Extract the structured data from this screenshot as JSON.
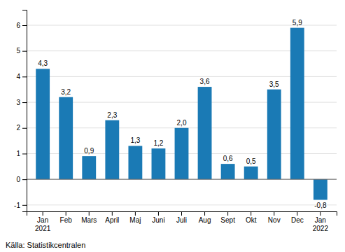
{
  "chart_data": {
    "type": "bar",
    "categories": [
      "Jan\n2021",
      "Feb",
      "Mars",
      "April",
      "Maj",
      "Juni",
      "Juli",
      "Aug",
      "Sept",
      "Okt",
      "Nov",
      "Dec",
      "Jan\n2022"
    ],
    "values": [
      4.3,
      3.2,
      0.9,
      2.3,
      1.3,
      1.2,
      2.0,
      3.6,
      0.6,
      0.5,
      3.5,
      5.9,
      -0.8
    ],
    "value_labels": [
      "4,3",
      "3,2",
      "0,9",
      "2,3",
      "1,3",
      "1,2",
      "2,0",
      "3,6",
      "0,6",
      "0,5",
      "3,5",
      "5,9",
      "-0,8"
    ],
    "data_labels": true,
    "color": "#1a7ab5",
    "ylim": [
      -1.25,
      6.6
    ],
    "yticks": [
      -1,
      0,
      1,
      2,
      3,
      4,
      5,
      6
    ],
    "grid": true,
    "annotations": [
      "Källa: Statistikcentralen"
    ]
  }
}
